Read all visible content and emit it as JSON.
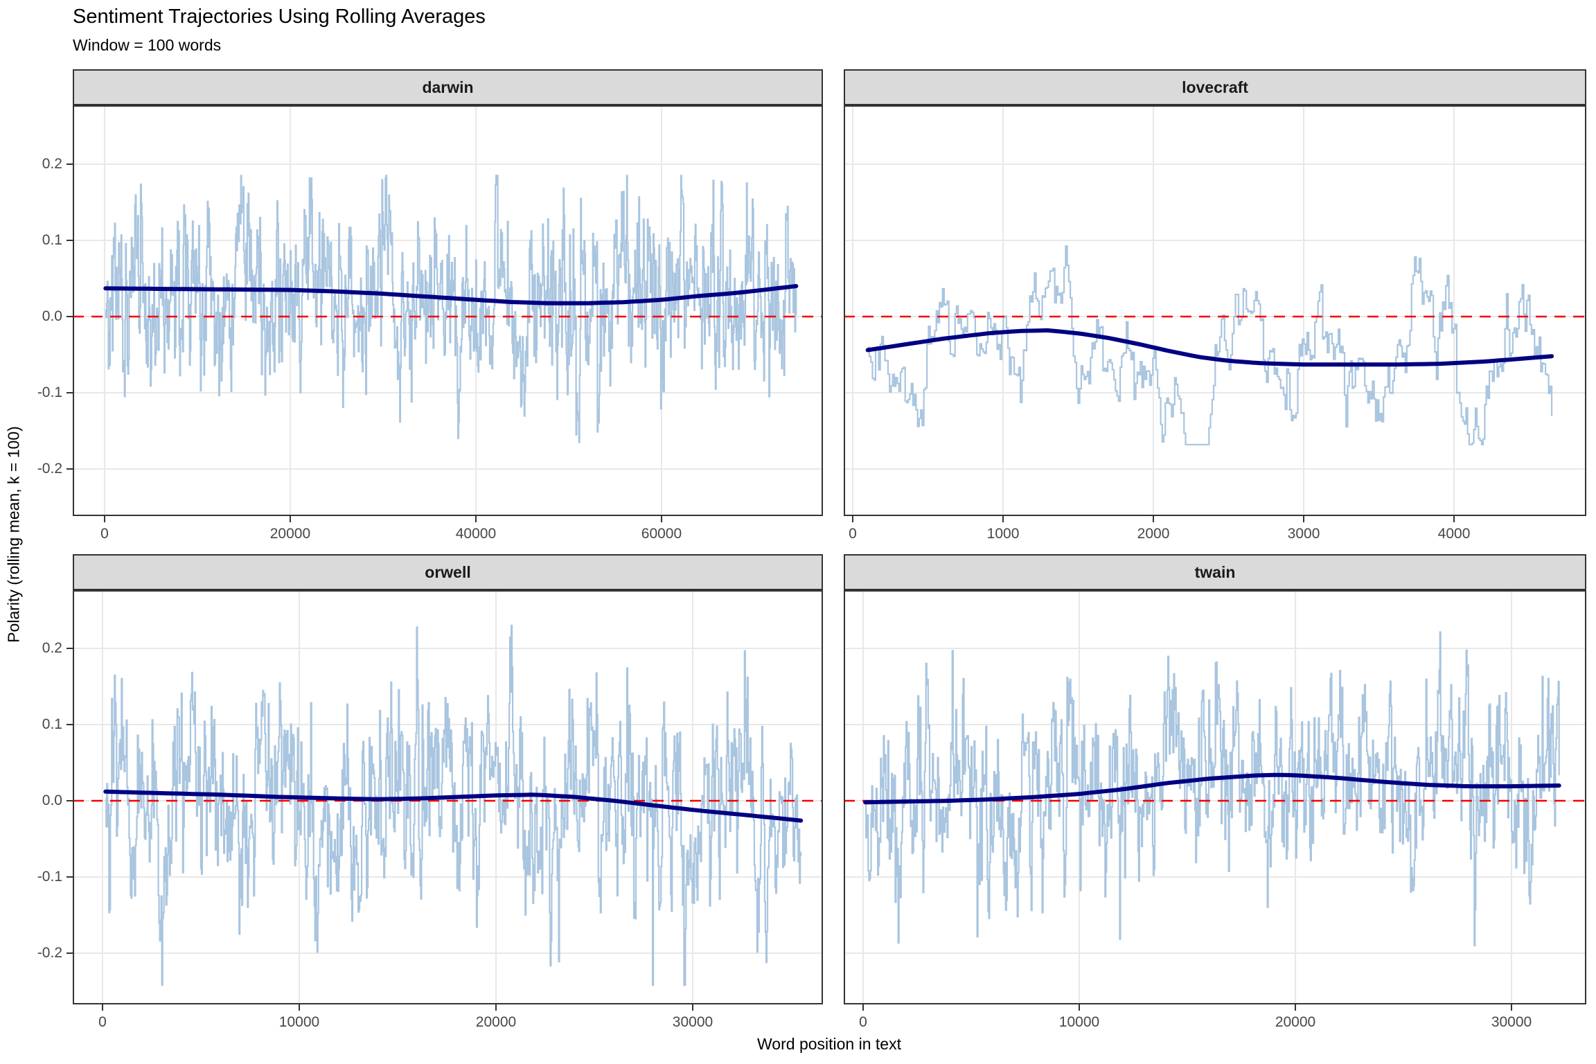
{
  "title": "Sentiment Trajectories Using Rolling Averages",
  "subtitle": "Window = 100 words",
  "axes": {
    "x_title": "Word position in text",
    "y_title": "Polarity (rolling mean, k = 100)"
  },
  "colors": {
    "rolling_line": "#A9C5DF",
    "smooth_line": "#000082",
    "reference_line": "#F80000",
    "strip_background": "#DADADA",
    "panel_border": "#333333",
    "gridline": "#E8E8E8",
    "tick_label": "#474747"
  },
  "chart_data": {
    "type": "line",
    "title": "Sentiment Trajectories Using Rolling Averages",
    "subtitle": "Window = 100 words",
    "xlabel": "Word position in text",
    "ylabel": "Polarity (rolling mean, k = 100)",
    "grid": true,
    "legend": "none",
    "y_ticks": [
      0.2,
      0.1,
      0.0,
      -0.1,
      -0.2
    ],
    "reference_line_y": 0,
    "facets": [
      {
        "label": "darwin",
        "x_ticks": [
          0,
          20000,
          40000,
          60000
        ],
        "x_domain": [
          -3430,
          77390
        ],
        "y_domain": [
          -0.2618,
          0.2773
        ],
        "data_range": [
          100,
          74500
        ],
        "smooth_trend": [
          [
            100,
            0.037
          ],
          [
            5000,
            0.0365
          ],
          [
            10000,
            0.036
          ],
          [
            15000,
            0.0355
          ],
          [
            20000,
            0.035
          ],
          [
            25000,
            0.033
          ],
          [
            30000,
            0.03
          ],
          [
            35000,
            0.026
          ],
          [
            40000,
            0.022
          ],
          [
            44000,
            0.019
          ],
          [
            48000,
            0.0175
          ],
          [
            52000,
            0.0175
          ],
          [
            56000,
            0.019
          ],
          [
            60000,
            0.022
          ],
          [
            64000,
            0.027
          ],
          [
            68000,
            0.031
          ],
          [
            71000,
            0.035
          ],
          [
            74500,
            0.04
          ]
        ],
        "rolling_noise": {
          "seed": 101,
          "n": 1200,
          "ar": 0.62,
          "sd": 0.048,
          "spike_prob": 0.01,
          "spike_mult": 2.2,
          "clamp": [
            -0.165,
            0.185
          ],
          "wave_amp": 0.01,
          "wave_period": 7000,
          "wave_phase": 0.5
        }
      },
      {
        "label": "lovecraft",
        "x_ticks": [
          0,
          1000,
          2000,
          3000,
          4000
        ],
        "x_domain": [
          -60,
          4880
        ],
        "y_domain": [
          -0.2618,
          0.2773
        ],
        "data_range": [
          100,
          4650
        ],
        "smooth_trend": [
          [
            100,
            -0.044
          ],
          [
            300,
            -0.038
          ],
          [
            600,
            -0.029
          ],
          [
            900,
            -0.022
          ],
          [
            1100,
            -0.019
          ],
          [
            1300,
            -0.018
          ],
          [
            1500,
            -0.022
          ],
          [
            1700,
            -0.028
          ],
          [
            1900,
            -0.036
          ],
          [
            2100,
            -0.045
          ],
          [
            2300,
            -0.053
          ],
          [
            2500,
            -0.058
          ],
          [
            2700,
            -0.061
          ],
          [
            3000,
            -0.063
          ],
          [
            3300,
            -0.063
          ],
          [
            3600,
            -0.063
          ],
          [
            3900,
            -0.062
          ],
          [
            4200,
            -0.059
          ],
          [
            4400,
            -0.056
          ],
          [
            4650,
            -0.052
          ]
        ],
        "rolling_noise": {
          "seed": 202,
          "n": 440,
          "ar": 0.9,
          "sd": 0.022,
          "spike_prob": 0.0,
          "spike_mult": 1.0,
          "clamp": [
            -0.168,
            0.115
          ],
          "wave_amp": 0.035,
          "wave_period": 650,
          "wave_phase": 2.1
        }
      },
      {
        "label": "orwell",
        "x_ticks": [
          0,
          10000,
          20000,
          30000
        ],
        "x_domain": [
          -1514,
          36620
        ],
        "y_domain": [
          -0.2673,
          0.2764
        ],
        "data_range": [
          150,
          35500
        ],
        "smooth_trend": [
          [
            150,
            0.012
          ],
          [
            3000,
            0.01
          ],
          [
            6000,
            0.008
          ],
          [
            9000,
            0.005
          ],
          [
            12000,
            0.003
          ],
          [
            14000,
            0.002
          ],
          [
            16000,
            0.003
          ],
          [
            18000,
            0.005
          ],
          [
            20000,
            0.007
          ],
          [
            22000,
            0.008
          ],
          [
            24000,
            0.005
          ],
          [
            26000,
            0.0
          ],
          [
            28000,
            -0.006
          ],
          [
            30000,
            -0.012
          ],
          [
            32000,
            -0.017
          ],
          [
            34000,
            -0.022
          ],
          [
            35500,
            -0.026
          ]
        ],
        "rolling_noise": {
          "seed": 303,
          "n": 1000,
          "ar": 0.66,
          "sd": 0.055,
          "spike_prob": 0.012,
          "spike_mult": 2.0,
          "clamp": [
            -0.242,
            0.23
          ],
          "wave_amp": 0.012,
          "wave_period": 5000,
          "wave_phase": 1.2
        }
      },
      {
        "label": "twain",
        "x_ticks": [
          0,
          10000,
          20000,
          30000
        ],
        "x_domain": [
          -897,
          33460
        ],
        "y_domain": [
          -0.2673,
          0.2764
        ],
        "data_range": [
          100,
          32200
        ],
        "smooth_trend": [
          [
            100,
            -0.002
          ],
          [
            2000,
            -0.001
          ],
          [
            4000,
            0.0
          ],
          [
            6000,
            0.002
          ],
          [
            8000,
            0.005
          ],
          [
            10000,
            0.009
          ],
          [
            12000,
            0.015
          ],
          [
            14000,
            0.023
          ],
          [
            16000,
            0.029
          ],
          [
            18000,
            0.033
          ],
          [
            19000,
            0.034
          ],
          [
            20000,
            0.0335
          ],
          [
            22000,
            0.03
          ],
          [
            24000,
            0.025
          ],
          [
            26000,
            0.021
          ],
          [
            28000,
            0.019
          ],
          [
            30000,
            0.019
          ],
          [
            32200,
            0.02
          ]
        ],
        "rolling_noise": {
          "seed": 404,
          "n": 950,
          "ar": 0.66,
          "sd": 0.05,
          "spike_prob": 0.01,
          "spike_mult": 2.0,
          "clamp": [
            -0.19,
            0.243
          ],
          "wave_amp": 0.015,
          "wave_period": 6000,
          "wave_phase": 4.0
        }
      }
    ]
  }
}
